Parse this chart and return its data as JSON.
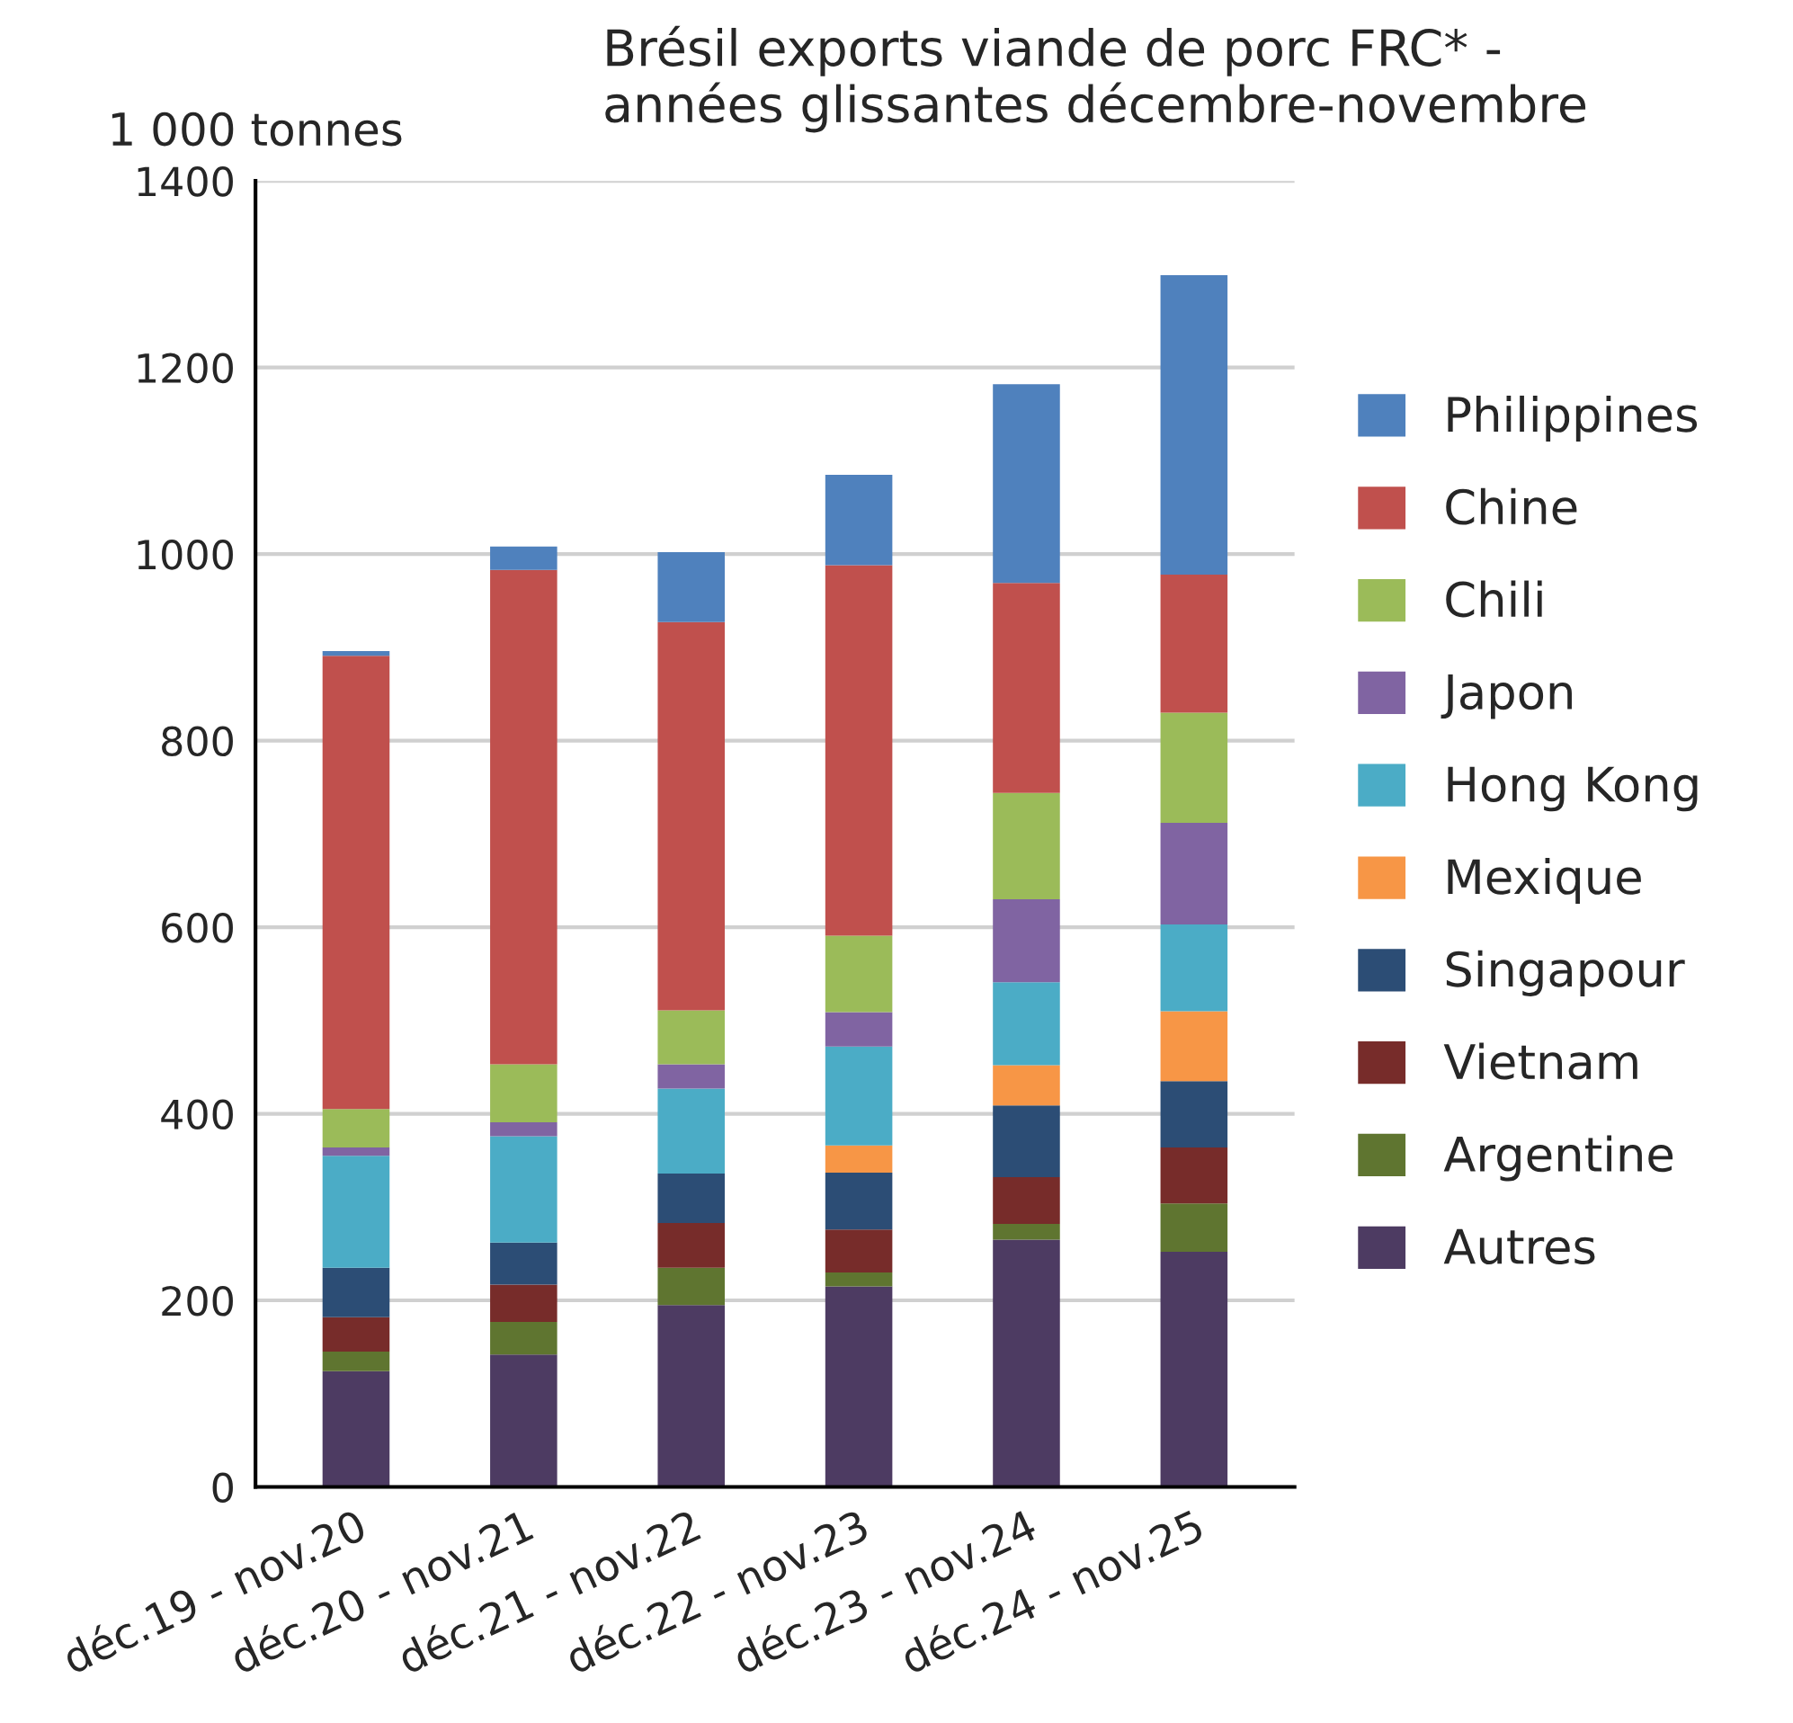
{
  "chart_data": {
    "type": "bar",
    "stacked": true,
    "title": "Brésil exports viande de porc FRC* -\nannées glissantes décembre-novembre",
    "ylabel": "1 000 tonnes",
    "categories": [
      "déc.19 - nov.20",
      "déc.20 - nov.21",
      "déc.21 - nov.22",
      "déc.22 - nov.23",
      "déc.23 - nov.24",
      "déc.24 - nov.25"
    ],
    "series": [
      {
        "name": "Autres",
        "color": "#4d3b62",
        "values": [
          124,
          142,
          195,
          215,
          265,
          252
        ]
      },
      {
        "name": "Argentine",
        "color": "#5f7530",
        "values": [
          21,
          35,
          40,
          15,
          17,
          52
        ]
      },
      {
        "name": "Vietnam",
        "color": "#772c2a",
        "values": [
          37,
          40,
          48,
          46,
          50,
          60
        ]
      },
      {
        "name": "Singapour",
        "color": "#2c4d75",
        "values": [
          53,
          45,
          53,
          61,
          77,
          71
        ]
      },
      {
        "name": "Mexique",
        "color": "#f79646",
        "values": [
          0,
          0,
          0,
          29,
          43,
          75
        ]
      },
      {
        "name": "Hong Kong",
        "color": "#4bacc6",
        "values": [
          120,
          114,
          91,
          106,
          89,
          93
        ]
      },
      {
        "name": "Japon",
        "color": "#8064a2",
        "values": [
          9,
          15,
          26,
          37,
          89,
          109
        ]
      },
      {
        "name": "Chili",
        "color": "#9bbb59",
        "values": [
          41,
          62,
          58,
          82,
          114,
          118
        ]
      },
      {
        "name": "Chine",
        "color": "#c0504d",
        "values": [
          486,
          530,
          416,
          397,
          225,
          148
        ]
      },
      {
        "name": "Philippines",
        "color": "#4f81bd",
        "values": [
          5,
          25,
          75,
          97,
          213,
          321
        ]
      }
    ],
    "ylim": [
      0,
      1400
    ],
    "yticks": [
      0,
      200,
      400,
      600,
      800,
      1000,
      1200,
      1400
    ],
    "grid": "y",
    "legend": "right"
  }
}
